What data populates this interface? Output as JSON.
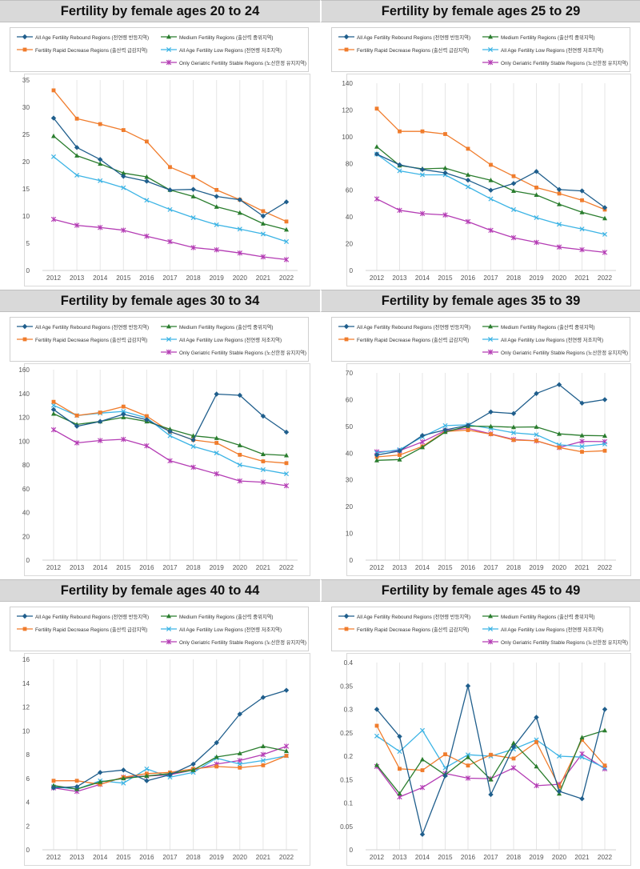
{
  "legend_series": [
    {
      "name": "All Age Fertility Rebound Regions (전연령 반등지역)",
      "color": "#1f5e8c",
      "marker": "diamond"
    },
    {
      "name": "Medium Fertility Regions (출산력 중위지역)",
      "color": "#2a7d2e",
      "marker": "triangle"
    },
    {
      "name": "Fertility Rapid Decrease Regions (출산력 급감지역)",
      "color": "#f07c2c",
      "marker": "square"
    },
    {
      "name": "All Age Fertility Low Regions (전연령 저조지역)",
      "color": "#3cb4e5",
      "marker": "x"
    },
    {
      "name": "Only Geriatric Fertility Stable Regions (노산한정 유지지역)",
      "color": "#b43cb4",
      "marker": "star"
    }
  ],
  "chart_data": [
    {
      "type": "line",
      "title": "Fertility by female ages 20 to 24",
      "categories": [
        "2012",
        "2013",
        "2014",
        "2015",
        "2016",
        "2017",
        "2018",
        "2019",
        "2020",
        "2021",
        "2022"
      ],
      "y_ticks": [
        "0",
        "5",
        "10",
        "15",
        "20",
        "25",
        "30",
        "35"
      ],
      "ylim": [
        0,
        35
      ],
      "grid": "vertical",
      "series": [
        {
          "name": "All Age Fertility Rebound Regions (전연령 반등지역)",
          "values": [
            28,
            22.6,
            20.4,
            17.3,
            16.4,
            14.8,
            14.9,
            13.6,
            13,
            10,
            12.6
          ]
        },
        {
          "name": "Medium Fertility Regions (출산력 중위지역)",
          "values": [
            24.7,
            21.1,
            19.6,
            17.9,
            17.2,
            14.8,
            13.6,
            11.7,
            10.6,
            8.6,
            7.5
          ]
        },
        {
          "name": "Fertility Rapid Decrease Regions (출산력 급감지역)",
          "values": [
            33.1,
            27.9,
            26.9,
            25.8,
            23.7,
            19,
            17.2,
            14.8,
            13,
            10.9,
            9
          ]
        },
        {
          "name": "All Age Fertility Low Regions (전연령 저조지역)",
          "values": [
            20.9,
            17.5,
            16.5,
            15.2,
            12.9,
            11.2,
            9.7,
            8.4,
            7.6,
            6.7,
            5.3
          ]
        },
        {
          "name": "Only Geriatric Fertility Stable Regions (노산한정 유지지역)",
          "values": [
            9.4,
            8.3,
            7.9,
            7.4,
            6.3,
            5.3,
            4.2,
            3.8,
            3.2,
            2.5,
            2
          ]
        }
      ]
    },
    {
      "type": "line",
      "title": "Fertility by female ages 25 to 29",
      "categories": [
        "2012",
        "2013",
        "2014",
        "2015",
        "2016",
        "2017",
        "2018",
        "2019",
        "2020",
        "2021",
        "2022"
      ],
      "y_ticks": [
        "0",
        "20",
        "40",
        "60",
        "80",
        "100",
        "120",
        "140"
      ],
      "ylim": [
        0,
        140
      ],
      "grid": "vertical",
      "series": [
        {
          "name": "All Age Fertility Rebound Regions (전연령 반등지역)",
          "values": [
            87,
            79,
            75.5,
            73,
            67.5,
            60,
            65,
            74,
            60.5,
            59.5,
            47
          ]
        },
        {
          "name": "Medium Fertility Regions (출산력 중위지역)",
          "values": [
            92.5,
            78.5,
            76,
            76.5,
            71.5,
            67.5,
            59.5,
            56.5,
            49.5,
            43.5,
            39
          ]
        },
        {
          "name": "Fertility Rapid Decrease Regions (출산력 급감지역)",
          "values": [
            121,
            104,
            104,
            102,
            91,
            79,
            70.5,
            62,
            57.5,
            52.5,
            45.5
          ]
        },
        {
          "name": "All Age Fertility Low Regions (전연령 저조지역)",
          "values": [
            87,
            74.5,
            71.5,
            71.5,
            62.5,
            53.5,
            45.5,
            39.5,
            34.5,
            31,
            27
          ]
        },
        {
          "name": "Only Geriatric Fertility Stable Regions (노산한정 유지지역)",
          "values": [
            53.5,
            45,
            42.5,
            41.5,
            36.5,
            30,
            24.5,
            21,
            17.5,
            15.5,
            13.5
          ]
        }
      ]
    },
    {
      "type": "line",
      "title": "Fertility by female ages 30 to 34",
      "categories": [
        "2012",
        "2013",
        "2014",
        "2015",
        "2016",
        "2017",
        "2018",
        "2019",
        "2020",
        "2021",
        "2022"
      ],
      "y_ticks": [
        "0",
        "20",
        "40",
        "60",
        "80",
        "100",
        "120",
        "140",
        "160"
      ],
      "ylim": [
        0,
        160
      ],
      "grid": "vertical",
      "series": [
        {
          "name": "All Age Fertility Rebound Regions (전연령 반등지역)",
          "values": [
            126.5,
            112.5,
            116.5,
            122.5,
            118,
            108,
            101,
            139.5,
            138.5,
            121,
            107.5
          ]
        },
        {
          "name": "Medium Fertility Regions (출산력 중위지역)",
          "values": [
            123,
            114,
            116.5,
            120,
            116.5,
            110,
            104.5,
            102.5,
            96.5,
            89,
            88
          ]
        },
        {
          "name": "Fertility Rapid Decrease Regions (출산력 급감지역)",
          "values": [
            133,
            121.5,
            124,
            129,
            121,
            108,
            101,
            98.5,
            88.5,
            83,
            81.5
          ]
        },
        {
          "name": "All Age Fertility Low Regions (전연령 저조지역)",
          "values": [
            130,
            121.5,
            123.5,
            125,
            119.5,
            104.5,
            95.5,
            90,
            80,
            76,
            72.5
          ]
        },
        {
          "name": "Only Geriatric Fertility Stable Regions (노산한정 유지지역)",
          "values": [
            109.5,
            98.5,
            100.5,
            101.5,
            96,
            83.5,
            78,
            72.5,
            66.5,
            65.5,
            62.5
          ]
        }
      ]
    },
    {
      "type": "line",
      "title": "Fertility by female ages 35 to 39",
      "categories": [
        "2012",
        "2013",
        "2014",
        "2015",
        "2016",
        "2017",
        "2018",
        "2019",
        "2020",
        "2021",
        "2022"
      ],
      "y_ticks": [
        "0",
        "10",
        "20",
        "30",
        "40",
        "50",
        "60",
        "70"
      ],
      "ylim": [
        0,
        70
      ],
      "grid": "vertical",
      "series": [
        {
          "name": "All Age Fertility Rebound Regions (전연령 반등지역)",
          "values": [
            39.3,
            40.8,
            46.6,
            48.7,
            50.4,
            55.4,
            54.8,
            62.3,
            65.6,
            58.7,
            60
          ]
        },
        {
          "name": "Medium Fertility Regions (출산력 중위지역)",
          "values": [
            37.3,
            37.6,
            42.2,
            47.9,
            50.1,
            50,
            49.7,
            49.8,
            47.2,
            46.6,
            46.5
          ]
        },
        {
          "name": "Fertility Rapid Decrease Regions (출산력 급감지역)",
          "values": [
            38.6,
            39.3,
            42.5,
            48.1,
            48.6,
            47.1,
            44.9,
            44.6,
            42.1,
            40.5,
            40.9
          ]
        },
        {
          "name": "All Age Fertility Low Regions (전연령 저조지역)",
          "values": [
            40.1,
            41.3,
            46.1,
            50.3,
            50.6,
            49.2,
            47.6,
            46.9,
            43.1,
            42.5,
            43.4
          ]
        },
        {
          "name": "Only Geriatric Fertility Stable Regions (노산한정 유지지역)",
          "values": [
            40.5,
            40.9,
            44.2,
            48.4,
            49.3,
            47.2,
            45.1,
            44.6,
            42.1,
            44.4,
            44.3
          ]
        }
      ]
    },
    {
      "type": "line",
      "title": "Fertility by female ages 40 to 44",
      "categories": [
        "2012",
        "2013",
        "2014",
        "2015",
        "2016",
        "2017",
        "2018",
        "2019",
        "2020",
        "2021",
        "2022"
      ],
      "y_ticks": [
        "0",
        "2",
        "4",
        "6",
        "8",
        "10",
        "12",
        "14",
        "16"
      ],
      "ylim": [
        0,
        16
      ],
      "grid": "vertical",
      "series": [
        {
          "name": "All Age Fertility Rebound Regions (전연령 반등지역)",
          "values": [
            5.2,
            5.3,
            6.5,
            6.7,
            5.8,
            6.3,
            7.2,
            9,
            11.4,
            12.8,
            13.4
          ]
        },
        {
          "name": "Medium Fertility Regions (출산력 중위지역)",
          "values": [
            5.4,
            5.1,
            5.7,
            6,
            6.2,
            6.4,
            6.7,
            7.8,
            8.1,
            8.7,
            8.3
          ]
        },
        {
          "name": "Fertility Rapid Decrease Regions (출산력 급감지역)",
          "values": [
            5.8,
            5.8,
            5.5,
            6.1,
            6.4,
            6.5,
            6.8,
            7,
            6.9,
            7.1,
            7.9
          ]
        },
        {
          "name": "All Age Fertility Low Regions (전연령 저조지역)",
          "values": [
            5.3,
            5.1,
            5.8,
            5.6,
            6.8,
            6.1,
            6.5,
            7.7,
            7.2,
            7.5,
            7.9
          ]
        },
        {
          "name": "Only Geriatric Fertility Stable Regions (노산한정 유지지역)",
          "values": [
            5.2,
            4.9,
            5.5,
            6.1,
            6.2,
            6.3,
            6.7,
            7.2,
            7.5,
            8,
            8.7
          ]
        }
      ]
    },
    {
      "type": "line",
      "title": "Fertility by female ages 45 to 49",
      "categories": [
        "2012",
        "2013",
        "2014",
        "2015",
        "2016",
        "2017",
        "2018",
        "2019",
        "2020",
        "2021",
        "2022"
      ],
      "y_ticks": [
        "0",
        "0.05",
        "0.1",
        "0.15",
        "0.2",
        "0.25",
        "0.3",
        "0.35",
        "0.4"
      ],
      "ylim": [
        0,
        0.4
      ],
      "grid": "vertical",
      "series": [
        {
          "name": "All Age Fertility Rebound Regions (전연령 반등지역)",
          "values": [
            0.3,
            0.242,
            0.033,
            0.158,
            0.35,
            0.118,
            0.22,
            0.283,
            0.125,
            0.109,
            0.3
          ]
        },
        {
          "name": "Medium Fertility Regions (출산력 중위지역)",
          "values": [
            0.181,
            0.12,
            0.193,
            0.16,
            0.198,
            0.15,
            0.228,
            0.178,
            0.12,
            0.24,
            0.255
          ]
        },
        {
          "name": "Fertility Rapid Decrease Regions (출산력 급감지역)",
          "values": [
            0.265,
            0.173,
            0.17,
            0.204,
            0.18,
            0.203,
            0.195,
            0.23,
            0.135,
            0.235,
            0.18
          ]
        },
        {
          "name": "All Age Fertility Low Regions (전연령 저조지역)",
          "values": [
            0.243,
            0.21,
            0.255,
            0.175,
            0.203,
            0.2,
            0.215,
            0.235,
            0.2,
            0.198,
            0.175
          ]
        },
        {
          "name": "Only Geriatric Fertility Stable Regions (노산한정 유지지역)",
          "values": [
            0.178,
            0.113,
            0.133,
            0.163,
            0.153,
            0.152,
            0.175,
            0.137,
            0.14,
            0.205,
            0.173
          ]
        }
      ]
    }
  ]
}
